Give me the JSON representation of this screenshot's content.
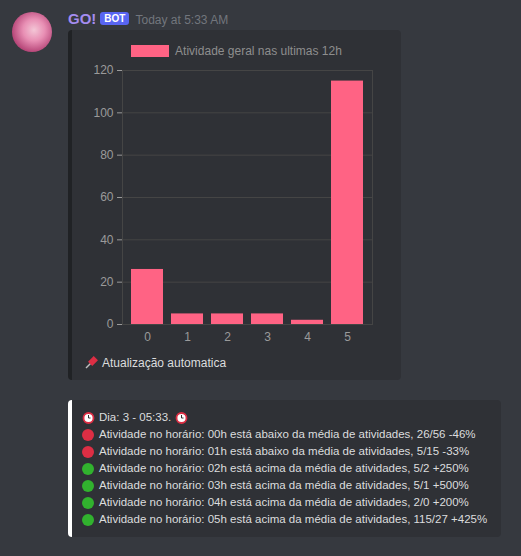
{
  "message": {
    "author": "GO!",
    "badge": "BOT",
    "timestamp": "Today at 5:33 AM"
  },
  "chart_data": {
    "type": "bar",
    "categories": [
      "0",
      "1",
      "2",
      "3",
      "4",
      "5"
    ],
    "series": [
      {
        "name": "Atividade geral nas ultimas 12h",
        "color": "#ff6384",
        "values": [
          26,
          5,
          5,
          5,
          2,
          115
        ]
      }
    ],
    "ylim": [
      0,
      120
    ],
    "yticks": [
      0,
      20,
      40,
      60,
      80,
      100,
      120
    ],
    "grid": true,
    "legend": "top"
  },
  "chart_footer": "Atualização automatica",
  "report": {
    "header": "Dia: 3 - 05:33.",
    "lines": [
      {
        "icon_color": "red",
        "text": "Atividade no horário: 00h está abaixo da média de atividades, 26/56 -46%"
      },
      {
        "icon_color": "red",
        "text": "Atividade no horário: 01h está abaixo da média de atividades, 5/15 -33%"
      },
      {
        "icon_color": "green",
        "text": "Atividade no horário: 02h está acima da média de atividades, 5/2 +250%"
      },
      {
        "icon_color": "green",
        "text": "Atividade no horário: 03h está acima da média de atividades, 5/1 +500%"
      },
      {
        "icon_color": "green",
        "text": "Atividade no horário: 04h está acima da média de atividades, 2/0 +200%"
      },
      {
        "icon_color": "green",
        "text": "Atividade no horário: 05h está acima da média de atividades, 115/27 +425%"
      }
    ]
  }
}
